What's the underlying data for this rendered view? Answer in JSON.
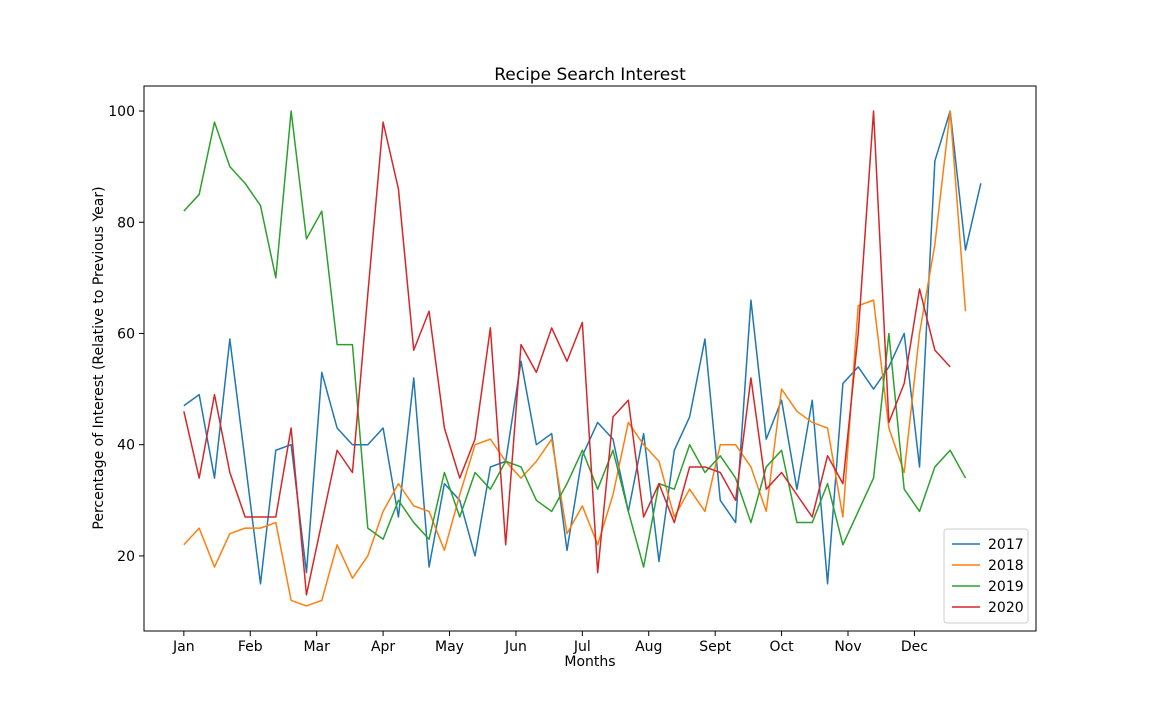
{
  "chart_data": {
    "type": "line",
    "title": "Recipe Search Interest",
    "xlabel": "Months",
    "ylabel": "Percentage of Interest (Relative to Previous Year)",
    "x_tick_labels": [
      "Jan",
      "Feb",
      "Mar",
      "Apr",
      "May",
      "Jun",
      "Jul",
      "Aug",
      "Sept",
      "Oct",
      "Nov",
      "Dec"
    ],
    "y_ticks": [
      20,
      40,
      60,
      80,
      100
    ],
    "ylim": [
      6.5,
      104.5
    ],
    "xlim": [
      -2.6,
      55.6
    ],
    "grid": false,
    "legend_position": "lower-right",
    "series": [
      {
        "name": "2017",
        "color": "#1f77b4",
        "values": [
          47,
          49,
          34,
          59,
          37,
          15,
          39,
          40,
          17,
          53,
          43,
          40,
          40,
          43,
          27,
          52,
          18,
          33,
          30,
          20,
          36,
          37,
          55,
          40,
          42,
          21,
          38,
          44,
          41,
          28,
          42,
          19,
          39,
          45,
          59,
          30,
          26,
          66,
          41,
          48,
          32,
          48,
          15,
          51,
          54,
          50,
          54,
          60,
          36,
          91,
          100,
          75,
          87
        ]
      },
      {
        "name": "2018",
        "color": "#ff7f0e",
        "values": [
          22,
          25,
          18,
          24,
          25,
          25,
          26,
          12,
          11,
          12,
          22,
          16,
          20,
          28,
          33,
          29,
          28,
          21,
          31,
          40,
          41,
          37,
          34,
          37,
          41,
          24,
          29,
          22,
          31,
          44,
          40,
          37,
          27,
          32,
          28,
          40,
          40,
          36,
          28,
          50,
          46,
          44,
          43,
          27,
          65,
          66,
          43,
          35,
          60,
          76,
          100,
          64
        ]
      },
      {
        "name": "2019",
        "color": "#2ca02c",
        "values": [
          82,
          85,
          98,
          90,
          87,
          83,
          70,
          100,
          77,
          82,
          58,
          58,
          25,
          23,
          30,
          26,
          23,
          35,
          27,
          35,
          32,
          37,
          36,
          30,
          28,
          33,
          39,
          32,
          39,
          28,
          18,
          33,
          32,
          40,
          35,
          38,
          34,
          26,
          36,
          39,
          26,
          26,
          33,
          22,
          28,
          34,
          60,
          32,
          28,
          36,
          39,
          34
        ]
      },
      {
        "name": "2020",
        "color": "#d62728",
        "values": [
          46,
          34,
          49,
          35,
          27,
          27,
          27,
          43,
          13,
          26,
          39,
          35,
          67,
          98,
          86,
          57,
          64,
          43,
          34,
          41,
          61,
          22,
          58,
          53,
          61,
          55,
          62,
          17,
          45,
          48,
          27,
          33,
          26,
          36,
          36,
          35,
          30,
          52,
          32,
          35,
          31,
          27,
          38,
          33,
          60,
          100,
          44,
          51,
          68,
          57,
          54
        ]
      }
    ]
  }
}
